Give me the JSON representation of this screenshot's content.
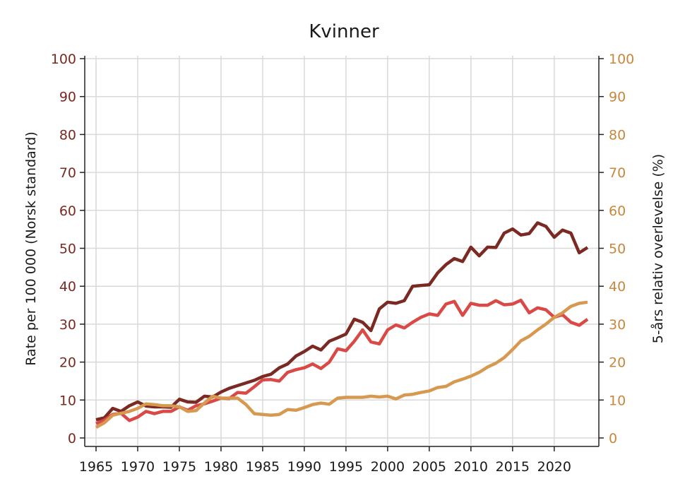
{
  "chart_data": {
    "type": "line",
    "title": "Kvinner",
    "xlabel": "",
    "ylabel_left": "Rate per 100 000 (Norsk standard)",
    "ylabel_right": "5-års relativ overlevelse (%)",
    "xlim": [
      1965,
      2024
    ],
    "ylim_left": [
      0,
      100
    ],
    "ylim_right": [
      0,
      100
    ],
    "x_ticks": [
      "1965",
      "1970",
      "1975",
      "1980",
      "1985",
      "1990",
      "1995",
      "2000",
      "2005",
      "2010",
      "2015",
      "2020"
    ],
    "y_ticks_left": [
      "0",
      "10",
      "20",
      "30",
      "40",
      "50",
      "60",
      "70",
      "80",
      "90",
      "100"
    ],
    "y_ticks_right": [
      "0",
      "10",
      "20",
      "30",
      "40",
      "50",
      "60",
      "70",
      "80",
      "90",
      "100"
    ],
    "grid": true,
    "colors": {
      "left_axis": "#7a2a22",
      "right_axis": "#c8873c",
      "grid": "#d9d9d9"
    },
    "x": [
      1965,
      1966,
      1967,
      1968,
      1969,
      1970,
      1971,
      1972,
      1973,
      1974,
      1975,
      1976,
      1977,
      1978,
      1979,
      1980,
      1981,
      1982,
      1983,
      1984,
      1985,
      1986,
      1987,
      1988,
      1989,
      1990,
      1991,
      1992,
      1993,
      1994,
      1995,
      1996,
      1997,
      1998,
      1999,
      2000,
      2001,
      2002,
      2003,
      2004,
      2005,
      2006,
      2007,
      2008,
      2009,
      2010,
      2011,
      2012,
      2013,
      2014,
      2015,
      2016,
      2017,
      2018,
      2019,
      2020,
      2021,
      2022,
      2023,
      2024
    ],
    "series": [
      {
        "axis": "left",
        "color": "#7a2a22",
        "values": [
          4.8,
          5.3,
          7.8,
          7.0,
          8.5,
          9.5,
          8.4,
          8.2,
          8.2,
          8.1,
          10.2,
          9.5,
          9.4,
          11.0,
          10.8,
          12.1,
          13.1,
          13.8,
          14.5,
          15.2,
          16.2,
          16.8,
          18.5,
          19.5,
          21.6,
          22.8,
          24.2,
          23.2,
          25.5,
          26.4,
          27.4,
          31.3,
          30.5,
          28.3,
          34.0,
          35.8,
          35.5,
          36.2,
          40.0,
          40.2,
          40.4,
          43.5,
          45.7,
          47.3,
          46.5,
          50.3,
          48.0,
          50.3,
          50.2,
          54.0,
          55.1,
          53.5,
          53.9,
          56.7,
          55.8,
          52.9,
          54.8,
          54.0,
          48.8,
          50.2
        ]
      },
      {
        "axis": "left",
        "color": "#d94a47",
        "values": [
          3.8,
          4.7,
          6.2,
          6.5,
          4.6,
          5.5,
          7.0,
          6.4,
          7.0,
          7.0,
          8.2,
          7.3,
          8.5,
          9.0,
          9.7,
          10.5,
          10.4,
          12.0,
          11.8,
          13.5,
          15.3,
          15.4,
          15.0,
          17.3,
          18.0,
          18.5,
          19.5,
          18.3,
          20.0,
          23.5,
          23.0,
          25.5,
          28.5,
          25.3,
          24.8,
          28.5,
          29.8,
          29.0,
          30.5,
          31.8,
          32.7,
          32.3,
          35.3,
          36.0,
          32.3,
          35.5,
          35.0,
          35.0,
          36.2,
          35.1,
          35.3,
          36.3,
          33.0,
          34.3,
          33.8,
          31.8,
          32.5,
          30.5,
          29.7,
          31.3
        ]
      },
      {
        "axis": "right",
        "color": "#d6994f",
        "values": [
          2.8,
          4.0,
          6.0,
          6.5,
          7.0,
          7.8,
          9.0,
          8.8,
          8.5,
          8.5,
          8.2,
          7.0,
          7.2,
          9.2,
          11.0,
          10.5,
          10.5,
          10.5,
          8.8,
          6.4,
          6.2,
          6.0,
          6.2,
          7.5,
          7.3,
          8.0,
          8.8,
          9.2,
          8.9,
          10.5,
          10.7,
          10.7,
          10.7,
          11.0,
          10.8,
          11.0,
          10.3,
          11.3,
          11.5,
          12.0,
          12.4,
          13.3,
          13.6,
          14.8,
          15.5,
          16.3,
          17.3,
          18.7,
          19.7,
          21.2,
          23.3,
          25.6,
          26.8,
          28.5,
          30.0,
          31.8,
          33.0,
          34.7,
          35.5,
          35.8
        ]
      }
    ]
  }
}
